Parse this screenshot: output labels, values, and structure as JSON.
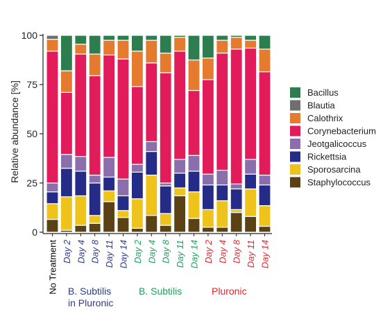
{
  "chart_data": {
    "type": "bar",
    "stacked": true,
    "ylabel": "Relative abundance [%]",
    "ylim": [
      0,
      100
    ],
    "yticks": [
      0,
      25,
      50,
      75,
      100
    ],
    "categories": [
      "No Treatment",
      "Day 2",
      "Day 4",
      "Day 8",
      "Day 11",
      "Day 14",
      "Day 2",
      "Day 4",
      "Day 8",
      "Day 11",
      "Day 14",
      "Day 2",
      "Day 4",
      "Day 8",
      "Day 11",
      "Day 14"
    ],
    "category_colors": [
      "#000000",
      "#2b3a8f",
      "#2b3a8f",
      "#2b3a8f",
      "#2b3a8f",
      "#2b3a8f",
      "#1aa35a",
      "#1aa35a",
      "#1aa35a",
      "#1aa35a",
      "#1aa35a",
      "#e2262f",
      "#e2262f",
      "#e2262f",
      "#e2262f",
      "#e2262f"
    ],
    "groups": [
      {
        "label_line1": "B. Subtilis",
        "label_line2": "in Pluronic",
        "color": "#2b3a8f"
      },
      {
        "label_line1": "B. Subtilis",
        "label_line2": "",
        "color": "#1aa35a"
      },
      {
        "label_line1": "Pluronic",
        "label_line2": "",
        "color": "#e2262f"
      }
    ],
    "legend_position": "right",
    "series": [
      {
        "name": "Staphylococcus",
        "color": "#5a4214",
        "values": [
          6.5,
          1,
          3.5,
          4.5,
          15.5,
          7.5,
          2,
          8.5,
          3.5,
          18.5,
          7,
          2.5,
          2.5,
          10,
          8,
          3
        ]
      },
      {
        "name": "Sporosarcina",
        "color": "#eec41c",
        "values": [
          8,
          17,
          15,
          4,
          5.5,
          3.5,
          15,
          20.5,
          6,
          4,
          13.5,
          9,
          13.5,
          1.5,
          14,
          10.5
        ]
      },
      {
        "name": "Rickettsia",
        "color": "#252c87",
        "values": [
          6,
          14.5,
          12.5,
          16.5,
          7,
          7.5,
          13.5,
          12,
          14,
          7.5,
          10.5,
          12.5,
          8,
          10.5,
          7.5,
          10.5
        ]
      },
      {
        "name": "Jeotgalicoccus",
        "color": "#8b6fad",
        "values": [
          4.5,
          7,
          7.5,
          4,
          10,
          8.5,
          4,
          5,
          1.5,
          7,
          8,
          5.5,
          7.5,
          2.5,
          7.5,
          5
        ]
      },
      {
        "name": "Corynebacterium",
        "color": "#e21c5a",
        "values": [
          67,
          31.5,
          52,
          50.5,
          52,
          61,
          39.5,
          40,
          56,
          55,
          33,
          48,
          59.5,
          68.5,
          56.5,
          52.5
        ]
      },
      {
        "name": "Calothrix",
        "color": "#e47b2e",
        "values": [
          6,
          11,
          5,
          11,
          7.5,
          9.5,
          18,
          11.5,
          10,
          7,
          15.5,
          11,
          6.5,
          6,
          4,
          11.5
        ]
      },
      {
        "name": "Blautia",
        "color": "#6f6f6f",
        "values": [
          2,
          0,
          0,
          0,
          0,
          0,
          0,
          0,
          0,
          0,
          0,
          0,
          0,
          0,
          0,
          0
        ]
      },
      {
        "name": "Bacillus",
        "color": "#2e7d4e",
        "values": [
          0,
          18,
          4.5,
          9.5,
          2.5,
          2.5,
          8,
          2.5,
          9,
          1,
          12.5,
          11.5,
          2.5,
          1,
          2.5,
          7
        ]
      }
    ]
  }
}
